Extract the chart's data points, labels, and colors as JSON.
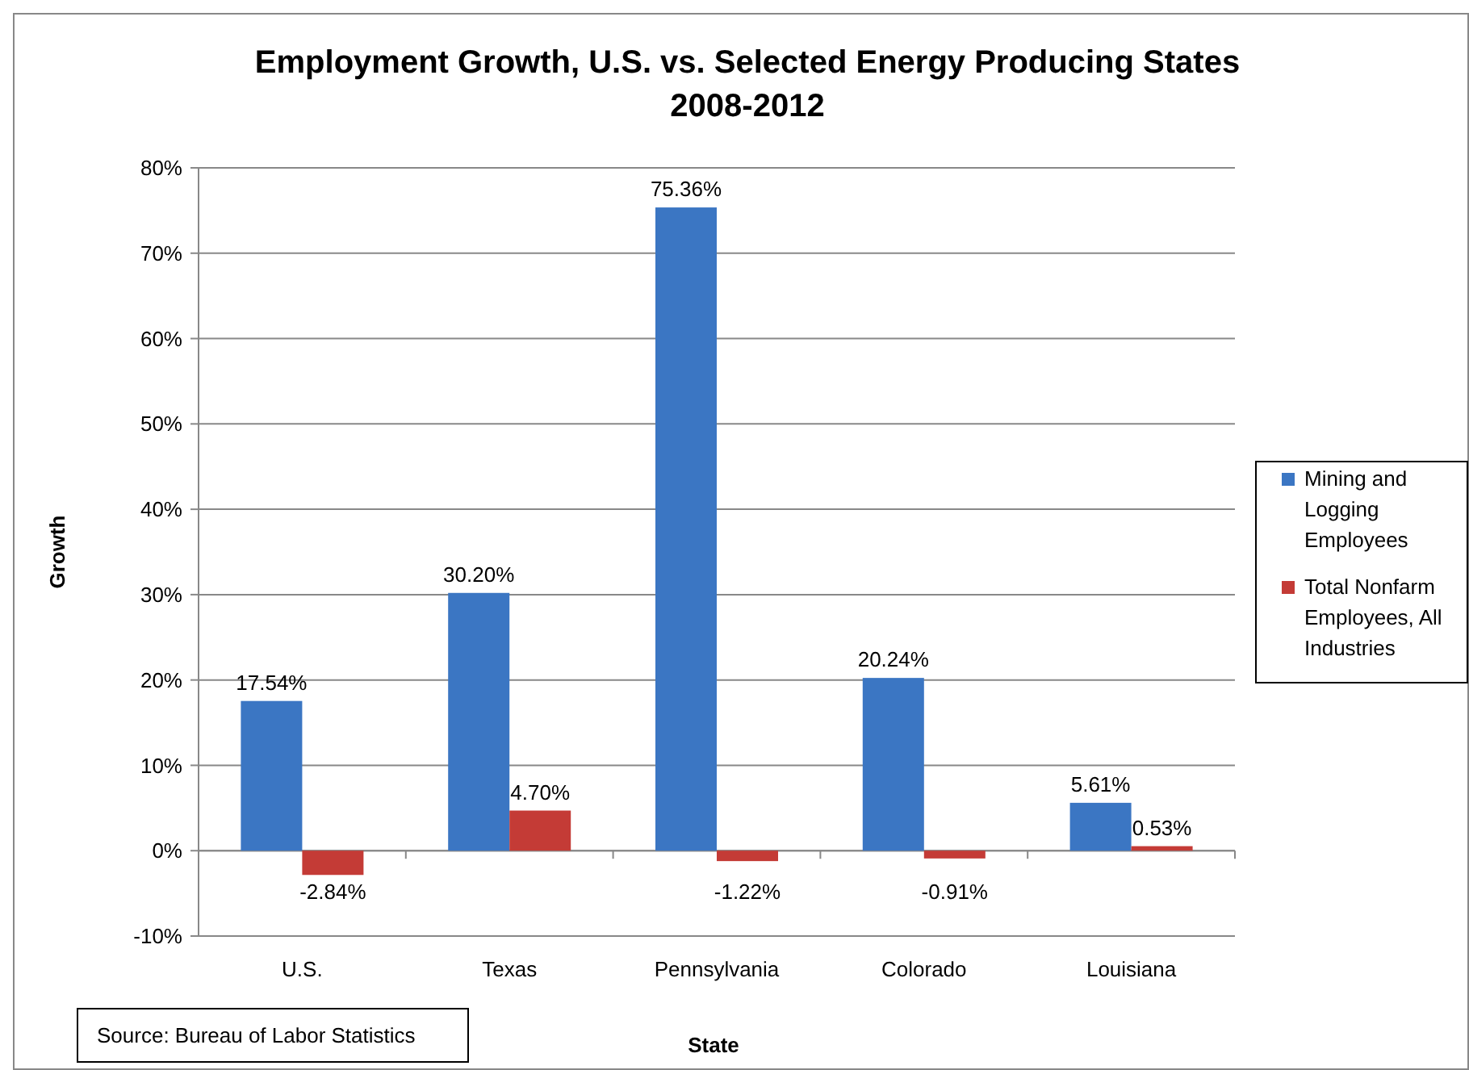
{
  "chart_data": {
    "type": "bar",
    "title": "Employment Growth, U.S. vs. Selected Energy Producing States\n2008-2012",
    "xlabel": "State",
    "ylabel": "Growth",
    "categories": [
      "U.S.",
      "Texas",
      "Pennsylvania",
      "Colorado",
      "Louisiana"
    ],
    "series": [
      {
        "name": "Mining and Logging Employees",
        "color": "#3b76c3",
        "values": [
          17.54,
          30.2,
          75.36,
          20.24,
          5.61
        ],
        "value_labels": [
          "17.54%",
          "30.20%",
          "75.36%",
          "20.24%",
          "5.61%"
        ]
      },
      {
        "name": "Total Nonfarm Employees, All Industries",
        "color": "#c43b36",
        "values": [
          -2.84,
          4.7,
          -1.22,
          -0.91,
          0.53
        ],
        "value_labels": [
          "-2.84%",
          "4.70%",
          "-1.22%",
          "-0.91%",
          "0.53%"
        ]
      }
    ],
    "ylim": [
      -10,
      80
    ],
    "yticks": [
      {
        "value": -10,
        "label": "-10%"
      },
      {
        "value": 0,
        "label": "0%"
      },
      {
        "value": 10,
        "label": "10%"
      },
      {
        "value": 20,
        "label": "20%"
      },
      {
        "value": 30,
        "label": "30%"
      },
      {
        "value": 40,
        "label": "40%"
      },
      {
        "value": 50,
        "label": "50%"
      },
      {
        "value": 60,
        "label": "60%"
      },
      {
        "value": 70,
        "label": "70%"
      },
      {
        "value": 80,
        "label": "80%"
      }
    ],
    "grid": "y",
    "legend": "right",
    "annotations": [
      "Source: Bureau of Labor Statistics"
    ]
  }
}
